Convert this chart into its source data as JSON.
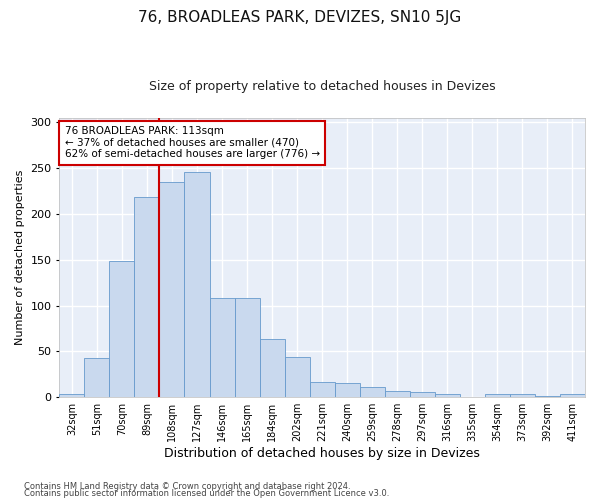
{
  "title": "76, BROADLEAS PARK, DEVIZES, SN10 5JG",
  "subtitle": "Size of property relative to detached houses in Devizes",
  "xlabel": "Distribution of detached houses by size in Devizes",
  "ylabel": "Number of detached properties",
  "bar_labels": [
    "32sqm",
    "51sqm",
    "70sqm",
    "89sqm",
    "108sqm",
    "127sqm",
    "146sqm",
    "165sqm",
    "184sqm",
    "202sqm",
    "221sqm",
    "240sqm",
    "259sqm",
    "278sqm",
    "297sqm",
    "316sqm",
    "335sqm",
    "354sqm",
    "373sqm",
    "392sqm",
    "411sqm"
  ],
  "bar_values": [
    3,
    43,
    149,
    218,
    235,
    246,
    108,
    108,
    63,
    44,
    17,
    16,
    11,
    7,
    6,
    3,
    0,
    4,
    3,
    1,
    3
  ],
  "bar_color": "#c9d9ee",
  "bar_edge_color": "#6699cc",
  "vline_index": 4,
  "vline_color": "#cc0000",
  "annotation_line1": "76 BROADLEAS PARK: 113sqm",
  "annotation_line2": "← 37% of detached houses are smaller (470)",
  "annotation_line3": "62% of semi-detached houses are larger (776) →",
  "annotation_box_edge": "#cc0000",
  "ylim": [
    0,
    305
  ],
  "yticks": [
    0,
    50,
    100,
    150,
    200,
    250,
    300
  ],
  "fig_bg_color": "#ffffff",
  "plot_bg_color": "#e8eef8",
  "grid_color": "#ffffff",
  "title_fontsize": 11,
  "subtitle_fontsize": 9,
  "tick_fontsize": 7,
  "ylabel_fontsize": 8,
  "xlabel_fontsize": 9,
  "footer_line1": "Contains HM Land Registry data © Crown copyright and database right 2024.",
  "footer_line2": "Contains public sector information licensed under the Open Government Licence v3.0."
}
